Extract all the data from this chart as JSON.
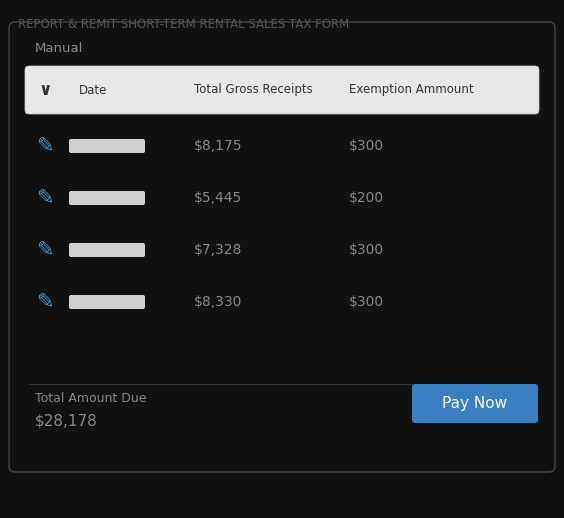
{
  "title": "REPORT & REMIT SHORT-TERM RENTAL SALES TAX FORM",
  "title_color": "#555555",
  "title_fontsize": 8.5,
  "bg_color": "#111111",
  "card_bg": "#111111",
  "card_edge": "#444444",
  "manual_label": "Manual",
  "manual_color": "#888888",
  "header_bg": "#e8e8e8",
  "header_edge": "#cccccc",
  "header_text_color": "#333333",
  "chevron_color": "#333333",
  "header_cols": [
    "Date",
    "Total Gross Receipts",
    "Exemption Ammount"
  ],
  "rows": [
    {
      "gross": "$8,175",
      "exemption": "$300"
    },
    {
      "gross": "$5,445",
      "exemption": "$200"
    },
    {
      "gross": "$7,328",
      "exemption": "$300"
    },
    {
      "gross": "$8,330",
      "exemption": "$300"
    }
  ],
  "total_label": "Total Amount Due",
  "total_value": "$28,178",
  "pay_btn_text": "Pay Now",
  "pay_btn_color": "#3a7fc1",
  "row_text_color": "#888888",
  "date_bar_color": "#d0d0d0",
  "pencil_color": "#4a90c4",
  "separator_color": "#333333",
  "title_bg": "#111111",
  "card_inner_bg": "#111111"
}
